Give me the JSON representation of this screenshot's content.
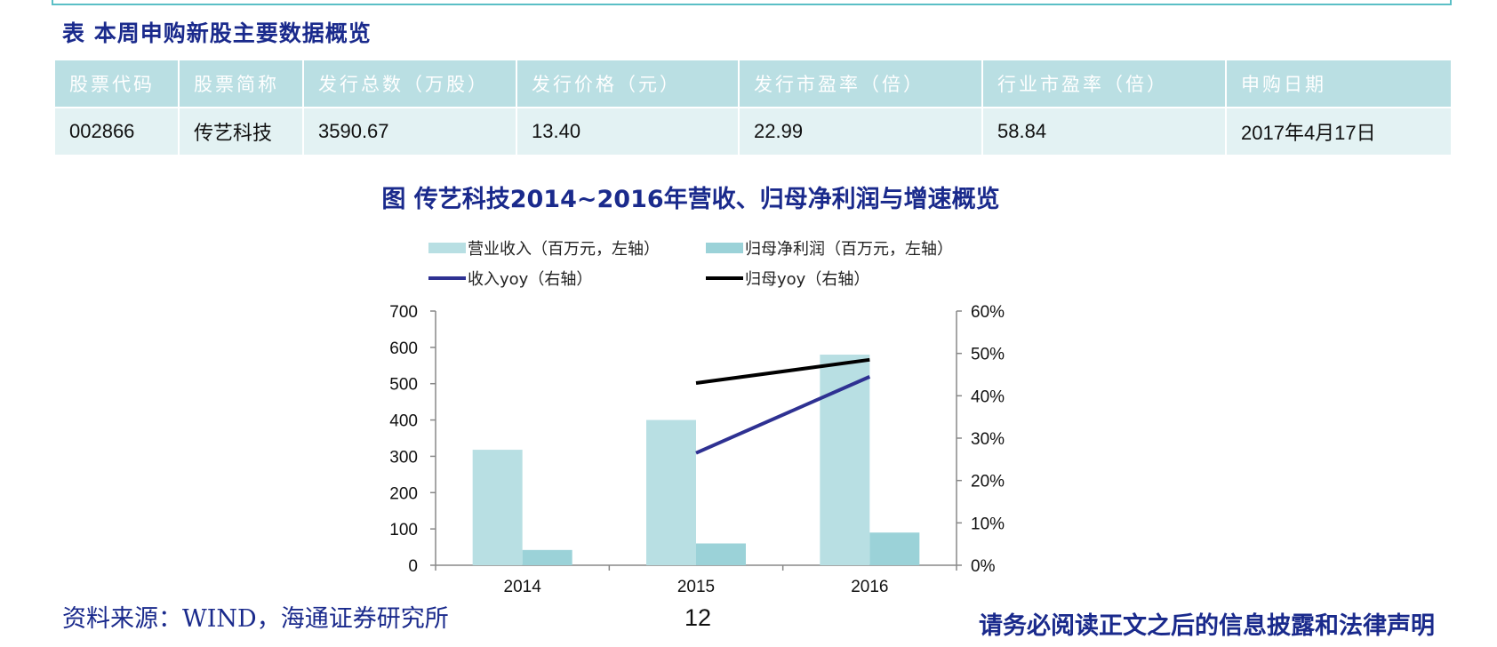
{
  "table": {
    "title": "表 本周申购新股主要数据概览",
    "headers": [
      "股票代码",
      "股票简称",
      "发行总数（万股）",
      "发行价格（元）",
      "发行市盈率（倍）",
      "行业市盈率（倍）",
      "申购日期"
    ],
    "rows": [
      [
        "002866",
        "传艺科技",
        "3590.67",
        "13.40",
        "22.99",
        "58.84",
        "2017年4月17日"
      ]
    ]
  },
  "chart_data": {
    "type": "bar",
    "title": "图 传艺科技2014~2016年营收、归母净利润与增速概览",
    "categories": [
      "2014",
      "2015",
      "2016"
    ],
    "series": [
      {
        "name": "营业收入（百万元，左轴）",
        "kind": "bar",
        "axis": "left",
        "color": "#b8dfe3",
        "values": [
          318,
          400,
          580
        ]
      },
      {
        "name": "归母净利润（百万元，左轴）",
        "kind": "bar",
        "axis": "left",
        "color": "#9bd2d8",
        "values": [
          42,
          60,
          90
        ]
      },
      {
        "name": "收入yoy（右轴）",
        "kind": "line",
        "axis": "right",
        "color": "#2e3192",
        "values": [
          null,
          0.265,
          0.445
        ]
      },
      {
        "name": "归母yoy（右轴）",
        "kind": "line",
        "axis": "right",
        "color": "#000000",
        "values": [
          null,
          0.43,
          0.485
        ]
      }
    ],
    "ylim_left": [
      0,
      700
    ],
    "left_ticks": [
      "0",
      "100",
      "200",
      "300",
      "400",
      "500",
      "600",
      "700"
    ],
    "ylim_right": [
      0,
      0.6
    ],
    "right_ticks": [
      "0%",
      "10%",
      "20%",
      "30%",
      "40%",
      "50%",
      "60%"
    ],
    "legend_position": "top",
    "grid": false
  },
  "footer": {
    "source": "资料来源：WIND，海通证券研究所",
    "page": "12",
    "disclaimer": "请务必阅读正文之后的信息披露和法律声明"
  }
}
